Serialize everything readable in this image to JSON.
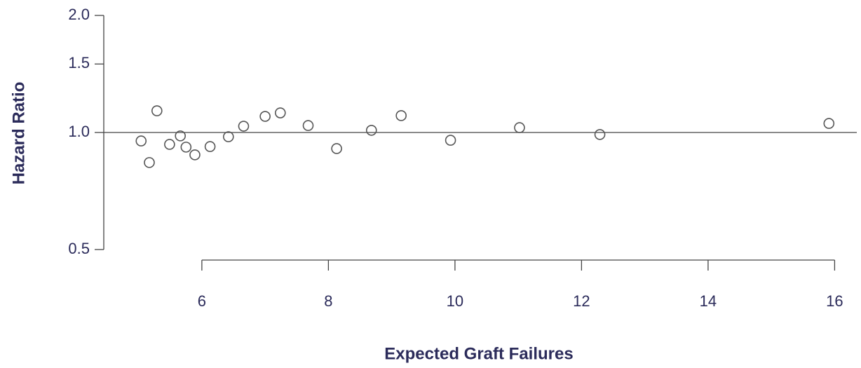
{
  "chart_data": {
    "type": "scatter",
    "x_label": "Expected Graft Failures",
    "y_label": "Hazard Ratio",
    "x": [
      5.04,
      5.17,
      5.29,
      5.49,
      5.66,
      5.75,
      5.89,
      6.13,
      6.42,
      6.66,
      7.0,
      7.24,
      7.68,
      8.13,
      8.68,
      9.15,
      9.93,
      11.02,
      12.29,
      15.91
    ],
    "y": [
      0.951,
      0.837,
      1.137,
      0.932,
      0.98,
      0.917,
      0.876,
      0.92,
      0.975,
      1.038,
      1.1,
      1.123,
      1.042,
      0.909,
      1.013,
      1.105,
      0.955,
      1.029,
      0.988,
      1.055
    ],
    "color": "#555555",
    "xlim": [
      4.45,
      16.35
    ],
    "ylim": [
      0.5,
      2.0
    ],
    "ylog": true,
    "xticks": [
      6,
      8,
      10,
      12,
      14,
      16
    ],
    "yticks": [
      {
        "value": 0.5,
        "label": "0.5"
      },
      {
        "value": 1.0,
        "label": "1.0"
      },
      {
        "value": 1.5,
        "label": "1.5"
      },
      {
        "value": 2.0,
        "label": "2.0"
      }
    ],
    "reference_line": 1.0
  }
}
